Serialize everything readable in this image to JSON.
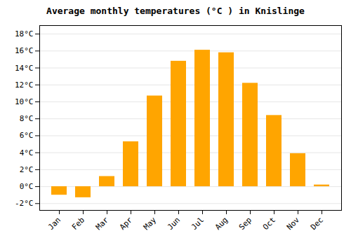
{
  "chart_data": {
    "type": "bar",
    "title": "Average monthly temperatures (°C ) in Knislinge",
    "categories": [
      "Jan",
      "Feb",
      "Mar",
      "Apr",
      "May",
      "Jun",
      "Jul",
      "Aug",
      "Sep",
      "Oct",
      "Nov",
      "Dec"
    ],
    "values": [
      -1.0,
      -1.3,
      1.2,
      5.3,
      10.7,
      14.8,
      16.1,
      15.8,
      12.2,
      8.4,
      3.9,
      0.2
    ],
    "color": "#FFA500",
    "ylim": [
      -2.8,
      19.0
    ],
    "yticks": [
      {
        "value": -2,
        "label": "-2°C"
      },
      {
        "value": 0,
        "label": "0°C"
      },
      {
        "value": 2,
        "label": "2°C"
      },
      {
        "value": 4,
        "label": "4°C"
      },
      {
        "value": 6,
        "label": "6°C"
      },
      {
        "value": 8,
        "label": "8°C"
      },
      {
        "value": 10,
        "label": "10°C"
      },
      {
        "value": 12,
        "label": "12°C"
      },
      {
        "value": 14,
        "label": "14°C"
      },
      {
        "value": 16,
        "label": "16°C"
      },
      {
        "value": 18,
        "label": "18°C"
      }
    ],
    "grid": true
  }
}
